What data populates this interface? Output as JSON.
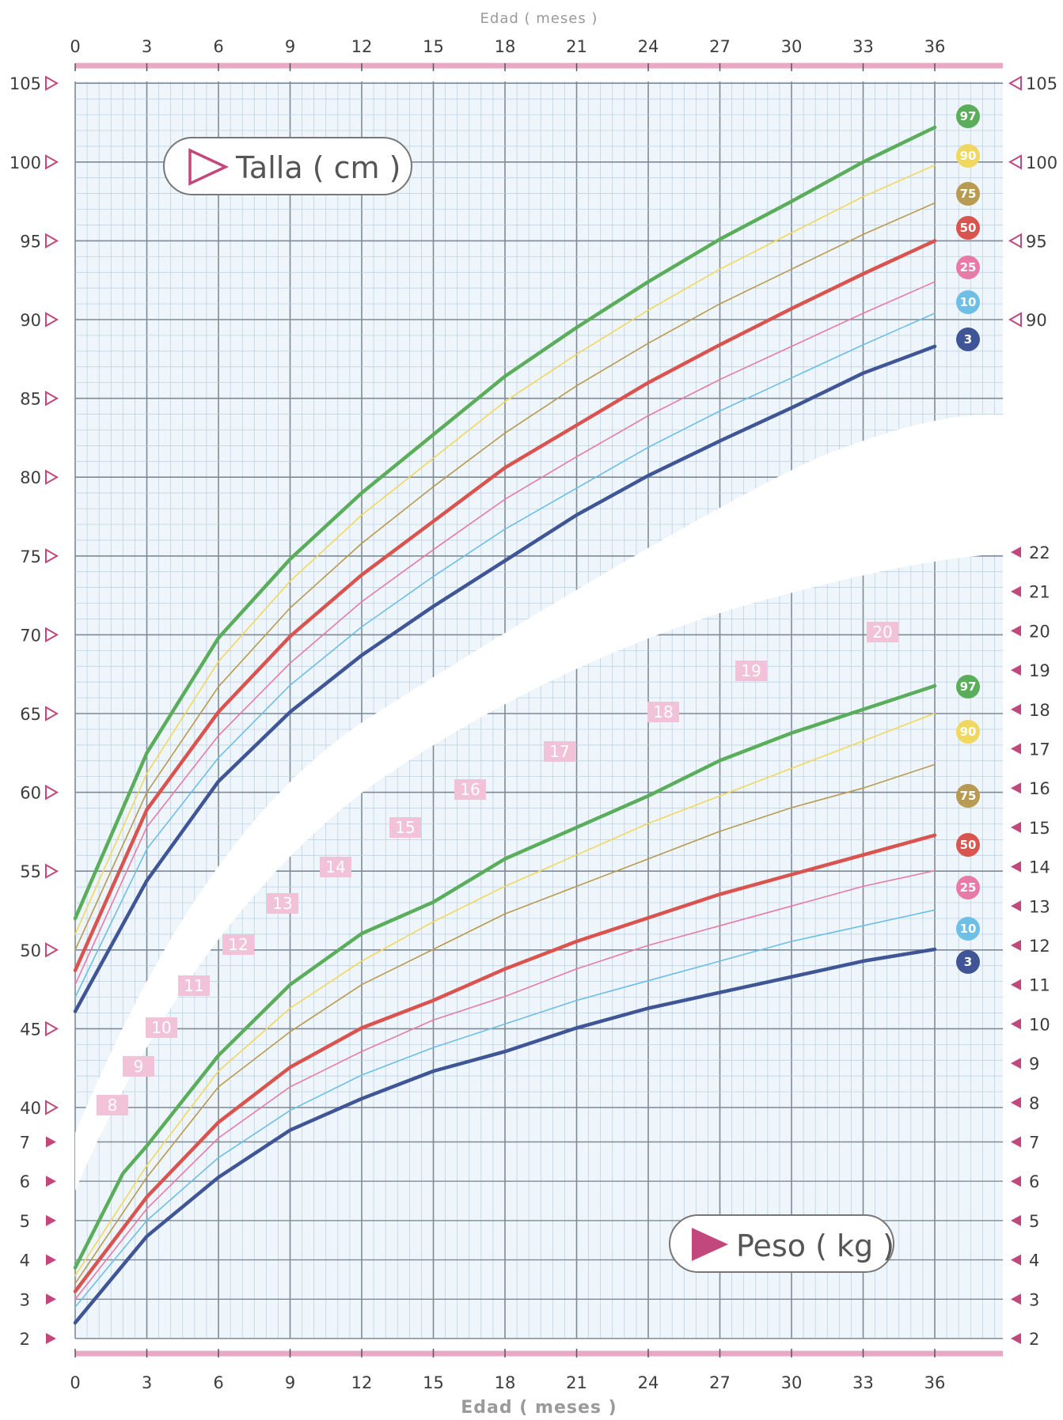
{
  "chart_data": {
    "type": "line",
    "x_axis": {
      "label": "Edad ( meses )",
      "range": [
        0,
        36
      ],
      "ticks": [
        0,
        3,
        6,
        9,
        12,
        15,
        18,
        21,
        24,
        27,
        30,
        33,
        36
      ]
    },
    "height_axis": {
      "label": "Talla ( cm )",
      "range": [
        40,
        105
      ],
      "ticks": [
        40,
        45,
        50,
        55,
        60,
        65,
        70,
        75,
        80,
        85,
        90,
        95,
        100,
        105
      ],
      "right_ticks": [
        90,
        95,
        100,
        105
      ]
    },
    "weight_axis": {
      "label": "Peso ( kg )",
      "range": [
        2,
        22
      ],
      "ticks_left": [
        2,
        3,
        4,
        5,
        6,
        7
      ],
      "ticks_right": [
        2,
        3,
        4,
        5,
        6,
        7,
        8,
        9,
        10,
        11,
        12,
        13,
        14,
        15,
        16,
        17,
        18,
        19,
        20,
        21,
        22
      ]
    },
    "grid": true,
    "percentile_colors": {
      "97": "#5aad5a",
      "90": "#f0d860",
      "75": "#b89a50",
      "50": "#d9534f",
      "25": "#e87aa8",
      "10": "#6dbfe6",
      "3": "#3f5596"
    },
    "height_series": [
      {
        "name": "97",
        "x": [
          0,
          3,
          6,
          9,
          12,
          15,
          18,
          21,
          24,
          27,
          30,
          33,
          36
        ],
        "y": [
          52,
          62.5,
          69.8,
          74.8,
          79,
          82.7,
          86.4,
          89.5,
          92.4,
          95.1,
          97.5,
          100,
          102.2
        ]
      },
      {
        "name": "90",
        "x": [
          0,
          3,
          6,
          9,
          12,
          15,
          18,
          21,
          24,
          27,
          30,
          33,
          36
        ],
        "y": [
          51,
          61.2,
          68.3,
          73.4,
          77.6,
          81.2,
          84.8,
          87.8,
          90.6,
          93.2,
          95.5,
          97.8,
          99.8
        ]
      },
      {
        "name": "75",
        "x": [
          0,
          3,
          6,
          9,
          12,
          15,
          18,
          21,
          24,
          27,
          30,
          33,
          36
        ],
        "y": [
          50,
          60,
          66.7,
          71.7,
          75.8,
          79.4,
          82.8,
          85.8,
          88.5,
          91,
          93.2,
          95.4,
          97.4
        ]
      },
      {
        "name": "50",
        "x": [
          0,
          3,
          6,
          9,
          12,
          15,
          18,
          21,
          24,
          27,
          30,
          33,
          36
        ],
        "y": [
          48.7,
          58.9,
          65.1,
          69.9,
          73.8,
          77.2,
          80.6,
          83.3,
          86,
          88.4,
          90.7,
          92.9,
          95
        ]
      },
      {
        "name": "25",
        "x": [
          0,
          3,
          6,
          9,
          12,
          15,
          18,
          21,
          24,
          27,
          30,
          33,
          36
        ],
        "y": [
          47.8,
          57.8,
          63.6,
          68.2,
          72.1,
          75.4,
          78.6,
          81.3,
          83.9,
          86.2,
          88.3,
          90.4,
          92.4
        ]
      },
      {
        "name": "10",
        "x": [
          0,
          3,
          6,
          9,
          12,
          15,
          18,
          21,
          24,
          27,
          30,
          33,
          36
        ],
        "y": [
          47,
          56.4,
          62.2,
          66.8,
          70.5,
          73.7,
          76.7,
          79.3,
          81.9,
          84.2,
          86.3,
          88.4,
          90.4
        ]
      },
      {
        "name": "3",
        "x": [
          0,
          3,
          6,
          9,
          12,
          15,
          18,
          21,
          24,
          27,
          30,
          33,
          36
        ],
        "y": [
          46.1,
          54.4,
          60.7,
          65.1,
          68.7,
          71.8,
          74.7,
          77.6,
          80.1,
          82.3,
          84.4,
          86.6,
          88.3
        ]
      }
    ],
    "weight_series": [
      {
        "name": "97",
        "x": [
          0,
          2,
          3,
          6,
          9,
          12,
          15,
          18,
          21,
          24,
          27,
          30,
          33,
          36
        ],
        "y": [
          3.8,
          6.2,
          6.9,
          9.2,
          11,
          12.3,
          13.1,
          14.2,
          15,
          15.8,
          16.7,
          17.4,
          18,
          18.6
        ]
      },
      {
        "name": "90",
        "x": [
          0,
          3,
          6,
          9,
          12,
          15,
          18,
          21,
          24,
          27,
          30,
          33,
          36
        ],
        "y": [
          3.6,
          6.4,
          8.8,
          10.4,
          11.6,
          12.6,
          13.5,
          14.3,
          15.1,
          15.8,
          16.5,
          17.2,
          17.9
        ]
      },
      {
        "name": "75",
        "x": [
          0,
          3,
          6,
          9,
          12,
          15,
          18,
          21,
          24,
          27,
          30,
          33,
          36
        ],
        "y": [
          3.4,
          6.1,
          8.4,
          9.8,
          11,
          11.9,
          12.8,
          13.5,
          14.2,
          14.9,
          15.5,
          16,
          16.6
        ]
      },
      {
        "name": "50",
        "x": [
          0,
          3,
          6,
          9,
          12,
          15,
          18,
          21,
          24,
          27,
          30,
          33,
          36
        ],
        "y": [
          3.2,
          5.6,
          7.5,
          8.9,
          9.9,
          10.6,
          11.4,
          12.1,
          12.7,
          13.3,
          13.8,
          14.3,
          14.8
        ]
      },
      {
        "name": "25",
        "x": [
          0,
          3,
          6,
          9,
          12,
          15,
          18,
          21,
          24,
          27,
          30,
          33,
          36
        ],
        "y": [
          3,
          5.3,
          7.1,
          8.4,
          9.3,
          10.1,
          10.7,
          11.4,
          12,
          12.5,
          13,
          13.5,
          13.9
        ]
      },
      {
        "name": "10",
        "x": [
          0,
          3,
          6,
          9,
          12,
          15,
          18,
          21,
          24,
          27,
          30,
          33,
          36
        ],
        "y": [
          2.8,
          5,
          6.6,
          7.8,
          8.7,
          9.4,
          10,
          10.6,
          11.1,
          11.6,
          12.1,
          12.5,
          12.9
        ]
      },
      {
        "name": "3",
        "x": [
          0,
          3,
          6,
          9,
          12,
          15,
          18,
          21,
          24,
          27,
          30,
          33,
          36
        ],
        "y": [
          2.4,
          4.6,
          6.1,
          7.3,
          8.1,
          8.8,
          9.3,
          9.9,
          10.4,
          10.8,
          11.2,
          11.6,
          11.9
        ]
      }
    ],
    "weight_reference_labels": [
      "8",
      "9",
      "10",
      "11",
      "12",
      "13",
      "14",
      "15",
      "16",
      "17",
      "18",
      "19",
      "20"
    ]
  }
}
